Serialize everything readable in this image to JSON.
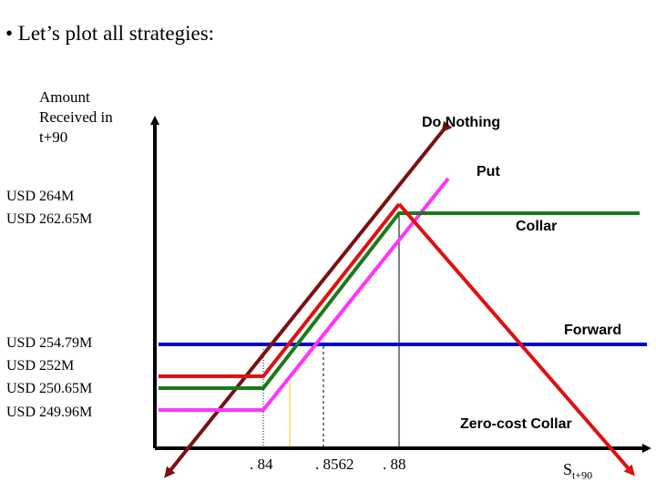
{
  "heading": "• Let’s plot all strategies:",
  "y_axis_label": [
    "Amount",
    "Received in",
    "t+90"
  ],
  "x_axis_label": {
    "main": "S",
    "sub": "t+90"
  },
  "y_ticks": [
    "USD 264M",
    "USD 262.65M",
    "USD 254.79M",
    "USD 252M",
    "USD 250.65M",
    "USD 249.96M"
  ],
  "x_ticks": [
    ". 84",
    ". 8562",
    ". 88"
  ],
  "series_labels": {
    "do_nothing": "Do Nothing",
    "put": "Put",
    "collar": "Collar",
    "forward": "Forward",
    "zero_cost_collar": "Zero-cost Collar"
  },
  "colors": {
    "do_nothing": "#7a1010",
    "put": "#ff33ff",
    "collar": "#1a7a1a",
    "forward": "#0000cc",
    "zero_cost_collar": "#e01010",
    "axis": "#000000",
    "guide_yellow": "#f0d000"
  }
}
